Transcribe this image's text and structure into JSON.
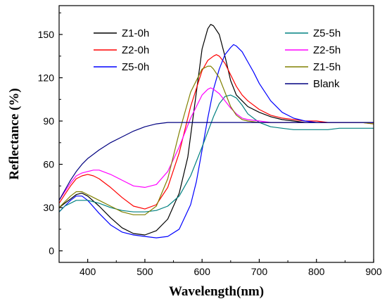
{
  "chart_data": {
    "type": "line",
    "title": "",
    "xlabel": "Wavelength(nm)",
    "ylabel": "Reflectance (%)",
    "xlim": [
      350,
      900
    ],
    "ylim": [
      -8,
      170
    ],
    "xticks": [
      400,
      500,
      600,
      700,
      800,
      900
    ],
    "yticks": [
      0,
      30,
      60,
      90,
      120,
      150
    ],
    "grid": false,
    "legend_placement": "top (two columns: left and right)",
    "series": [
      {
        "name": "Z1-0h",
        "color": "#000000",
        "x": [
          350,
          360,
          370,
          380,
          390,
          400,
          420,
          440,
          460,
          480,
          500,
          520,
          540,
          560,
          575,
          590,
          600,
          610,
          615,
          620,
          630,
          640,
          650,
          660,
          670,
          680,
          700,
          720,
          740,
          760,
          780,
          800,
          820,
          840,
          860,
          880,
          900
        ],
        "y": [
          30,
          33,
          36,
          39,
          40,
          38,
          31,
          23,
          16,
          12,
          11,
          14,
          22,
          40,
          65,
          110,
          140,
          154,
          157,
          156,
          150,
          135,
          118,
          108,
          104,
          100,
          96,
          93,
          91,
          90,
          89,
          89,
          89,
          89,
          89,
          89,
          89
        ]
      },
      {
        "name": "Z2-0h",
        "color": "#ff0000",
        "x": [
          350,
          360,
          370,
          380,
          390,
          400,
          410,
          420,
          440,
          460,
          480,
          500,
          520,
          540,
          560,
          580,
          600,
          610,
          620,
          625,
          630,
          640,
          650,
          660,
          670,
          680,
          700,
          720,
          740,
          760,
          780,
          800,
          820,
          840,
          860,
          880,
          900
        ],
        "y": [
          33,
          39,
          45,
          50,
          52,
          53,
          52,
          50,
          44,
          37,
          31,
          29,
          32,
          44,
          68,
          100,
          125,
          132,
          135,
          136,
          135,
          130,
          122,
          114,
          108,
          104,
          98,
          94,
          92,
          91,
          90,
          90,
          89,
          89,
          89,
          89,
          88
        ]
      },
      {
        "name": "Z5-0h",
        "color": "#0000ff",
        "x": [
          350,
          360,
          370,
          380,
          390,
          400,
          420,
          440,
          460,
          480,
          500,
          520,
          540,
          560,
          580,
          590,
          600,
          610,
          620,
          630,
          640,
          650,
          655,
          660,
          670,
          680,
          690,
          700,
          720,
          740,
          760,
          780,
          800,
          820,
          840,
          860,
          880,
          900
        ],
        "y": [
          27,
          31,
          35,
          38,
          38,
          35,
          26,
          18,
          13,
          11,
          10,
          9,
          10,
          15,
          32,
          48,
          70,
          92,
          112,
          126,
          136,
          141,
          143,
          142,
          138,
          131,
          124,
          116,
          104,
          96,
          92,
          90,
          89,
          89,
          89,
          89,
          89,
          89
        ]
      },
      {
        "name": "Z5-5h",
        "color": "#008080",
        "x": [
          350,
          360,
          380,
          400,
          420,
          440,
          460,
          480,
          500,
          520,
          540,
          560,
          580,
          600,
          620,
          630,
          640,
          650,
          660,
          670,
          680,
          700,
          720,
          740,
          760,
          780,
          800,
          820,
          840,
          860,
          880,
          900
        ],
        "y": [
          27,
          31,
          35,
          35,
          33,
          30,
          28,
          27,
          27,
          28,
          31,
          38,
          52,
          72,
          93,
          102,
          107,
          108,
          106,
          101,
          95,
          89,
          86,
          85,
          84,
          84,
          84,
          84,
          85,
          85,
          85,
          85
        ]
      },
      {
        "name": "Z2-5h",
        "color": "#ff00ff",
        "x": [
          350,
          360,
          370,
          380,
          390,
          400,
          410,
          420,
          440,
          460,
          480,
          500,
          520,
          540,
          560,
          580,
          600,
          610,
          615,
          620,
          630,
          640,
          650,
          660,
          670,
          680,
          700,
          720,
          740,
          760,
          780,
          800,
          820,
          840,
          860,
          880,
          900
        ],
        "y": [
          35,
          41,
          47,
          52,
          54,
          55,
          56,
          56,
          53,
          49,
          45,
          44,
          46,
          55,
          72,
          92,
          108,
          112,
          113,
          112,
          109,
          104,
          99,
          95,
          92,
          91,
          90,
          89,
          89,
          89,
          89,
          89,
          89,
          89,
          89,
          89,
          89
        ]
      },
      {
        "name": "Z1-5h",
        "color": "#808000",
        "x": [
          350,
          360,
          370,
          380,
          390,
          400,
          420,
          440,
          460,
          480,
          500,
          520,
          540,
          560,
          580,
          600,
          610,
          615,
          620,
          630,
          640,
          650,
          660,
          670,
          680,
          700,
          720,
          740,
          760,
          780,
          800,
          820,
          840,
          860,
          880,
          900
        ],
        "y": [
          30,
          34,
          38,
          41,
          41,
          39,
          35,
          31,
          27,
          25,
          25,
          31,
          50,
          82,
          110,
          126,
          128,
          128,
          126,
          120,
          110,
          100,
          94,
          91,
          90,
          89,
          89,
          89,
          89,
          89,
          89,
          89,
          89,
          89,
          89,
          88
        ]
      },
      {
        "name": "Blank",
        "color": "#000080",
        "x": [
          350,
          360,
          370,
          380,
          390,
          400,
          420,
          440,
          460,
          480,
          500,
          520,
          540,
          560,
          580,
          600,
          620,
          640,
          660,
          680,
          700,
          720,
          740,
          760,
          780,
          800,
          820,
          840,
          860,
          880,
          900
        ],
        "y": [
          35,
          42,
          49,
          55,
          60,
          64,
          70,
          75,
          79,
          83,
          86,
          88,
          89,
          89,
          89,
          89,
          89,
          89,
          89,
          89,
          89,
          89,
          89,
          89,
          89,
          89,
          89,
          89,
          89,
          89,
          89
        ]
      }
    ]
  }
}
